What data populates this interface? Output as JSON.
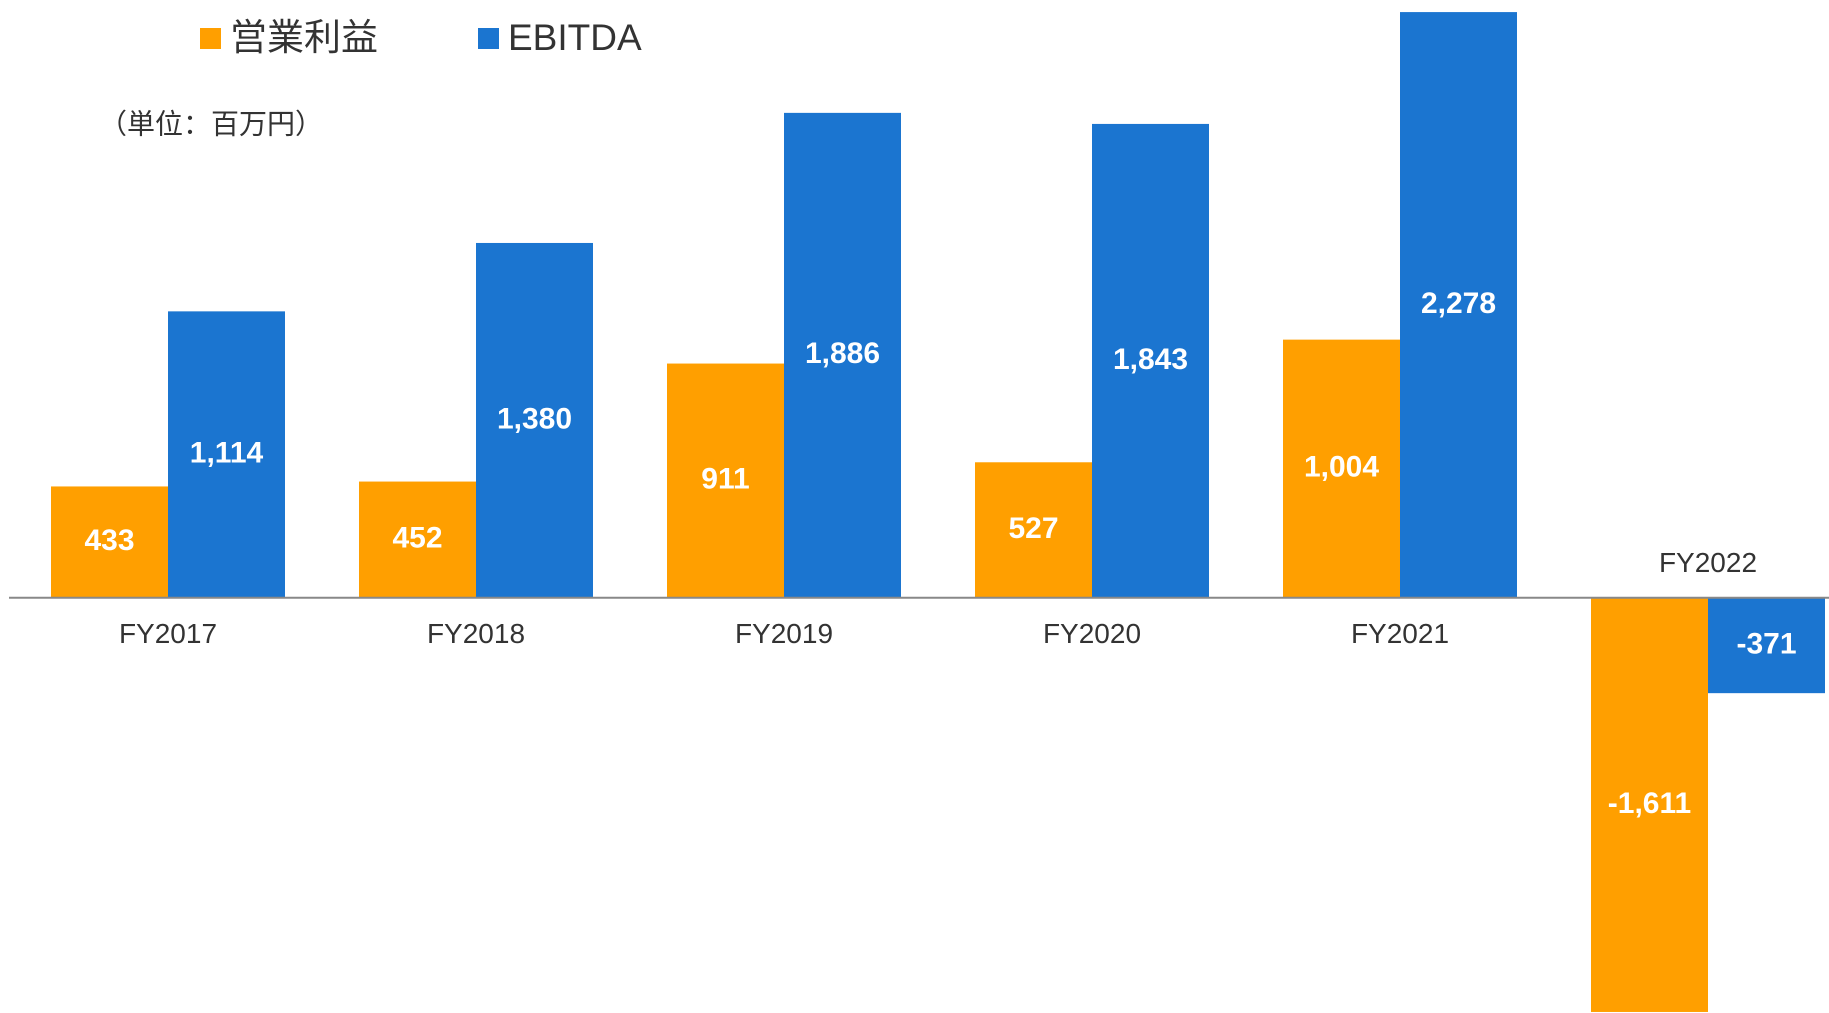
{
  "chart_data": {
    "type": "bar",
    "unit_note": "（単位：百万円）",
    "categories": [
      "FY2017",
      "FY2018",
      "FY2019",
      "FY2020",
      "FY2021",
      "FY2022"
    ],
    "series": [
      {
        "name": "営業利益",
        "color": "#ff9f00",
        "values": [
          433,
          452,
          911,
          527,
          1004,
          -1611
        ],
        "value_labels": [
          "433",
          "452",
          "911",
          "527",
          "1,004",
          "-1,611"
        ]
      },
      {
        "name": "EBITDA",
        "color": "#1b75d0",
        "values": [
          1114,
          1380,
          1886,
          1843,
          2278,
          -371
        ],
        "value_labels": [
          "1,114",
          "1,380",
          "1,886",
          "1,843",
          "2,278",
          "-371"
        ]
      }
    ],
    "ylim": [
      -1615,
      2325
    ],
    "legend": "top-left"
  }
}
